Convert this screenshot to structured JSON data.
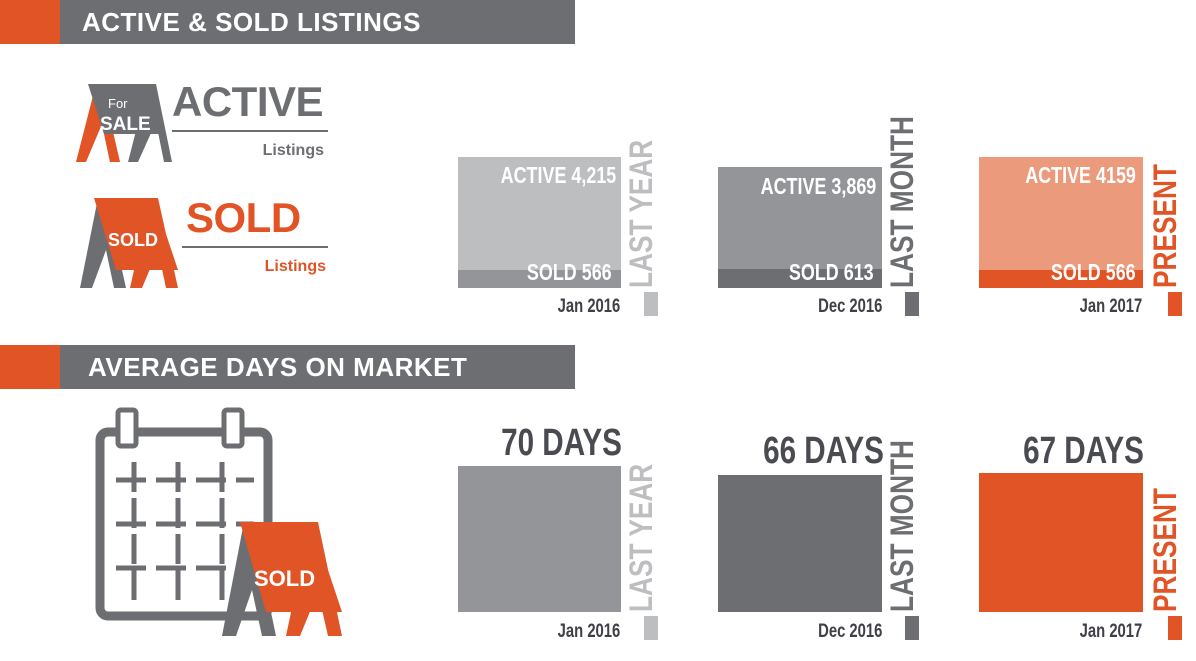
{
  "sections": {
    "listings_title": "ACTIVE & SOLD LISTINGS",
    "days_title": "AVERAGE DAYS ON MARKET"
  },
  "legend": {
    "active": {
      "big": "ACTIVE",
      "small": "Listings"
    },
    "sold": {
      "big": "SOLD",
      "small": "Listings"
    },
    "sign_for": "For",
    "sign_sale": "SALE",
    "sign_sold": "SOLD",
    "calendar_sign_sold": "SOLD"
  },
  "colors": {
    "orange": "#e05426",
    "dark_gray": "#6d6e71",
    "mid_gray": "#939598",
    "light_gray": "#bcbec0",
    "light_orange": "#ec9a7c"
  },
  "chart_data": [
    {
      "type": "bar",
      "title": "ACTIVE & SOLD LISTINGS",
      "categories": [
        "Jan 2016",
        "Dec 2016",
        "Jan 2017"
      ],
      "periods": [
        "LAST YEAR",
        "LAST MONTH",
        "PRESENT"
      ],
      "series": [
        {
          "name": "ACTIVE",
          "values": [
            4215,
            3869,
            4159
          ],
          "labels": [
            "ACTIVE 4,215",
            "ACTIVE 3,869",
            "ACTIVE 4159"
          ]
        },
        {
          "name": "SOLD",
          "values": [
            566,
            613,
            566
          ],
          "labels": [
            "SOLD 566",
            "SOLD 613",
            "SOLD 566"
          ]
        }
      ]
    },
    {
      "type": "bar",
      "title": "AVERAGE DAYS ON MARKET",
      "categories": [
        "Jan 2016",
        "Dec 2016",
        "Jan 2017"
      ],
      "periods": [
        "LAST YEAR",
        "LAST MONTH",
        "PRESENT"
      ],
      "values": [
        70,
        66,
        67
      ],
      "labels": [
        "70 DAYS",
        "66 DAYS",
        "67 DAYS"
      ]
    }
  ]
}
